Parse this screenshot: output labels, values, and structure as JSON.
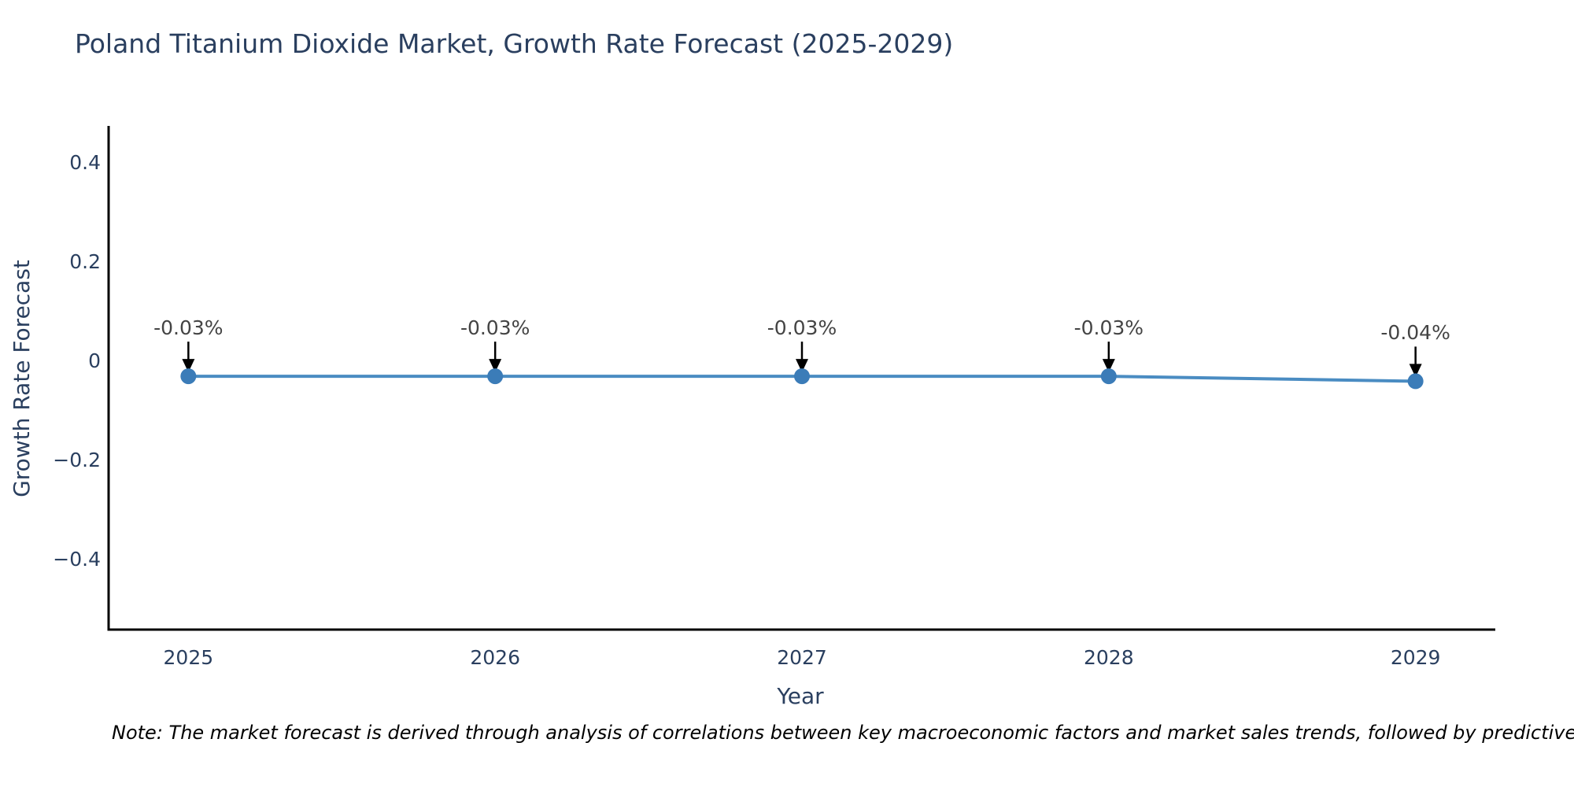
{
  "title": "Poland Titanium Dioxide Market, Growth Rate Forecast (2025-2029)",
  "note": "Note: The market forecast is derived through analysis of correlations between key macroeconomic factors and market sales trends, followed by predictive modeling to project future sales.",
  "chart_data": {
    "type": "line",
    "title": "Poland Titanium Dioxide Market, Growth Rate Forecast (2025-2029)",
    "xlabel": "Year",
    "ylabel": "Growth Rate Forecast",
    "x": [
      2025,
      2026,
      2027,
      2028,
      2029
    ],
    "series": [
      {
        "name": "Growth Rate Forecast",
        "values": [
          -0.03,
          -0.03,
          -0.03,
          -0.03,
          -0.04
        ],
        "point_labels": [
          "-0.03%",
          "-0.03%",
          "-0.03%",
          "-0.03%",
          "-0.04%"
        ]
      }
    ],
    "xticks": [
      "2025",
      "2026",
      "2027",
      "2028",
      "2029"
    ],
    "yticks": [
      0.4,
      0.2,
      0,
      -0.2,
      -0.4
    ],
    "ytick_labels": [
      "0.4",
      "0.2",
      "0",
      "−0.2",
      "−0.4"
    ],
    "xlim": [
      2024.74,
      2029.26
    ],
    "ylim": [
      -0.541,
      0.475
    ],
    "grid": false,
    "legend_position": "none",
    "colors": {
      "line": "#4a8cc2",
      "marker": "#3b7cb8",
      "axis": "#000000",
      "text": "#2a3f5f",
      "annotation_text": "#444444",
      "arrow": "#000000",
      "background": "#ffffff"
    }
  }
}
